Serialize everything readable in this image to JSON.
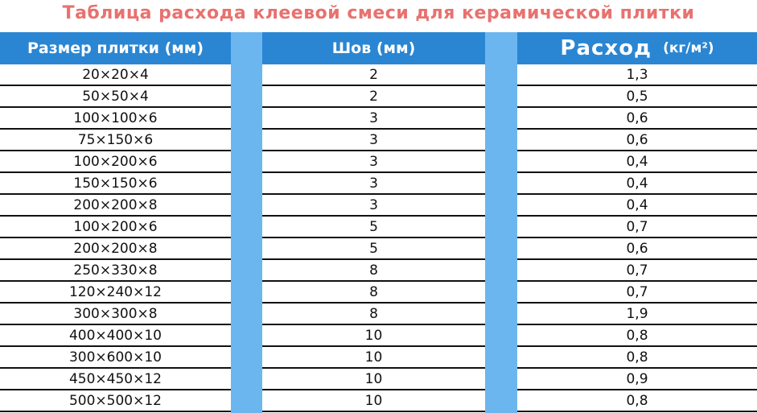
{
  "title": "Таблица расхода клеевой смеси для керамической плитки",
  "colors": {
    "title": "#e8716f",
    "header_bg": "#2a86d2",
    "spacer_bg": "#6cb6f0"
  },
  "headers": {
    "size": "Размер плитки (мм)",
    "seam": "Шов (мм)",
    "consumption": "Расход",
    "consumption_unit": "(кг/м²)"
  },
  "rows": [
    {
      "size": "20×20×4",
      "seam": "2",
      "consumption": "1,3"
    },
    {
      "size": "50×50×4",
      "seam": "2",
      "consumption": "0,5"
    },
    {
      "size": "100×100×6",
      "seam": "3",
      "consumption": "0,6"
    },
    {
      "size": "75×150×6",
      "seam": "3",
      "consumption": "0,6"
    },
    {
      "size": "100×200×6",
      "seam": "3",
      "consumption": "0,4"
    },
    {
      "size": "150×150×6",
      "seam": "3",
      "consumption": "0,4"
    },
    {
      "size": "200×200×8",
      "seam": "3",
      "consumption": "0,4"
    },
    {
      "size": "100×200×6",
      "seam": "5",
      "consumption": "0,7"
    },
    {
      "size": "200×200×8",
      "seam": "5",
      "consumption": "0,6"
    },
    {
      "size": "250×330×8",
      "seam": "8",
      "consumption": "0,7"
    },
    {
      "size": "120×240×12",
      "seam": "8",
      "consumption": "0,7"
    },
    {
      "size": "300×300×8",
      "seam": "8",
      "consumption": "1,9"
    },
    {
      "size": "400×400×10",
      "seam": "10",
      "consumption": "0,8"
    },
    {
      "size": "300×600×10",
      "seam": "10",
      "consumption": "0,8"
    },
    {
      "size": "450×450×12",
      "seam": "10",
      "consumption": "0,9"
    },
    {
      "size": "500×500×12",
      "seam": "10",
      "consumption": "0,8"
    }
  ]
}
